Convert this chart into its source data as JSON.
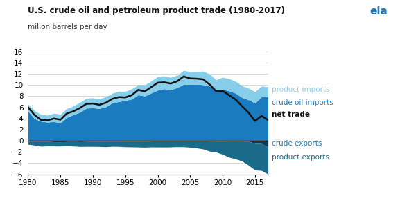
{
  "title": "U.S. crude oil and petroleum product trade (1980-2017)",
  "ylabel": "milion barrels per day",
  "ylim": [
    -6,
    16
  ],
  "yticks": [
    -6,
    -4,
    -2,
    0,
    2,
    4,
    6,
    8,
    10,
    12,
    14,
    16
  ],
  "years": [
    1980,
    1981,
    1982,
    1983,
    1984,
    1985,
    1986,
    1987,
    1988,
    1989,
    1990,
    1991,
    1992,
    1993,
    1994,
    1995,
    1996,
    1997,
    1998,
    1999,
    2000,
    2001,
    2002,
    2003,
    2004,
    2005,
    2006,
    2007,
    2008,
    2009,
    2010,
    2011,
    2012,
    2013,
    2014,
    2015,
    2016,
    2017
  ],
  "crude_oil_imports": [
    5.26,
    3.97,
    3.49,
    3.33,
    3.43,
    3.2,
    4.18,
    4.67,
    5.11,
    5.84,
    5.89,
    5.78,
    6.08,
    6.79,
    7.0,
    7.23,
    7.46,
    8.23,
    8.0,
    8.56,
    9.07,
    9.32,
    9.14,
    9.52,
    10.09,
    10.13,
    10.12,
    10.03,
    9.78,
    9.01,
    9.21,
    8.95,
    8.53,
    7.73,
    7.34,
    6.77,
    7.87,
    7.92
  ],
  "product_imports": [
    1.33,
    1.45,
    1.22,
    1.26,
    1.5,
    1.53,
    1.62,
    1.56,
    1.78,
    1.78,
    1.79,
    1.69,
    1.8,
    1.72,
    1.85,
    1.62,
    1.82,
    1.81,
    2.0,
    2.16,
    2.45,
    2.29,
    2.22,
    2.21,
    2.51,
    2.21,
    2.29,
    2.43,
    2.17,
    1.9,
    2.17,
    2.16,
    2.12,
    2.09,
    2.08,
    2.01,
    1.92,
    1.73
  ],
  "crude_exports": [
    -0.1,
    -0.09,
    -0.09,
    -0.1,
    -0.18,
    -0.2,
    -0.16,
    -0.15,
    -0.17,
    -0.14,
    -0.11,
    -0.11,
    -0.1,
    -0.09,
    -0.09,
    -0.08,
    -0.08,
    -0.08,
    -0.08,
    -0.07,
    -0.04,
    -0.03,
    -0.04,
    -0.05,
    -0.04,
    -0.03,
    -0.04,
    -0.04,
    -0.07,
    -0.08,
    -0.08,
    -0.07,
    -0.07,
    -0.07,
    -0.12,
    -0.46,
    -0.52,
    -1.12
  ],
  "product_exports": [
    -0.53,
    -0.69,
    -0.89,
    -0.83,
    -0.76,
    -0.75,
    -0.74,
    -0.8,
    -0.86,
    -0.87,
    -0.9,
    -0.92,
    -0.97,
    -0.91,
    -0.93,
    -1.0,
    -1.02,
    -1.04,
    -1.08,
    -1.04,
    -1.08,
    -1.1,
    -1.07,
    -1.02,
    -1.04,
    -1.14,
    -1.25,
    -1.44,
    -1.8,
    -1.95,
    -2.35,
    -2.88,
    -3.18,
    -3.55,
    -4.26,
    -4.78,
    -4.81,
    -4.85
  ],
  "net_trade": [
    6.0,
    4.64,
    3.73,
    3.66,
    3.99,
    3.78,
    4.9,
    5.28,
    5.86,
    6.61,
    6.67,
    6.44,
    6.81,
    7.51,
    7.83,
    7.77,
    8.18,
    9.12,
    8.84,
    9.61,
    10.4,
    10.48,
    10.25,
    10.66,
    11.52,
    11.17,
    11.12,
    11.0,
    10.08,
    8.88,
    8.95,
    8.16,
    7.4,
    6.2,
    5.04,
    3.54,
    4.46,
    3.73
  ],
  "color_crude_oil_imports": "#1a7bbf",
  "color_product_imports": "#87ceeb",
  "color_crude_exports": "#0d3d56",
  "color_product_exports": "#1a6b8a",
  "color_net_trade": "#111111",
  "bg_color": "#ffffff",
  "grid_color": "#d0d0d0",
  "label_product_imports": "product imports",
  "label_crude_oil_imports": "crude oil imports",
  "label_net_trade": "net trade",
  "label_crude_exports": "crude exports",
  "label_product_exports": "product exports",
  "xticks": [
    1980,
    1985,
    1990,
    1995,
    2000,
    2005,
    2010,
    2015
  ]
}
